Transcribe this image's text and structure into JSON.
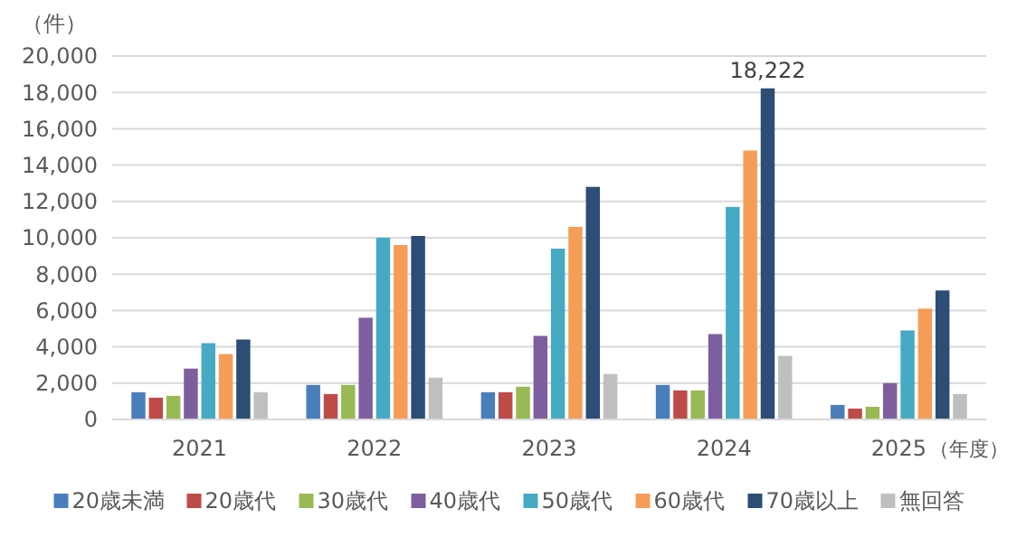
{
  "chart_data": {
    "type": "bar",
    "xlabel": "（年度）",
    "ylabel": "（件）",
    "categories": [
      "2021",
      "2022",
      "2023",
      "2024",
      "2025"
    ],
    "series": [
      {
        "name": "20歳未満",
        "color": "#4a7ebb",
        "values": [
          1500,
          1900,
          1500,
          1900,
          800
        ]
      },
      {
        "name": "20歳代",
        "color": "#be4b48",
        "values": [
          1200,
          1400,
          1500,
          1600,
          600
        ]
      },
      {
        "name": "30歳代",
        "color": "#98b954",
        "values": [
          1300,
          1900,
          1800,
          1600,
          700
        ]
      },
      {
        "name": "40歳代",
        "color": "#7d5fa0",
        "values": [
          2800,
          5600,
          4600,
          4700,
          2000
        ]
      },
      {
        "name": "50歳代",
        "color": "#46aac5",
        "values": [
          4200,
          10000,
          9400,
          11700,
          4900
        ]
      },
      {
        "name": "60歳代",
        "color": "#f59d56",
        "values": [
          3600,
          9600,
          10600,
          14800,
          6100
        ]
      },
      {
        "name": "70歳以上",
        "color": "#2c4d75",
        "values": [
          4400,
          10100,
          12800,
          18222,
          7100
        ],
        "value_labels": [
          null,
          null,
          null,
          "18,222",
          null
        ]
      },
      {
        "name": "無回答",
        "color": "#bfbfbf",
        "values": [
          1500,
          2300,
          2500,
          3500,
          1400
        ]
      }
    ],
    "ylim": [
      0,
      20000
    ],
    "yticks": [
      {
        "value": 0,
        "label": "0"
      },
      {
        "value": 2000,
        "label": "2,000"
      },
      {
        "value": 4000,
        "label": "4,000"
      },
      {
        "value": 6000,
        "label": "6,000"
      },
      {
        "value": 8000,
        "label": "8,000"
      },
      {
        "value": 10000,
        "label": "10,000"
      },
      {
        "value": 12000,
        "label": "12,000"
      },
      {
        "value": 14000,
        "label": "14,000"
      },
      {
        "value": 16000,
        "label": "16,000"
      },
      {
        "value": 18000,
        "label": "18,000"
      },
      {
        "value": 20000,
        "label": "20,000"
      }
    ],
    "grid": "y",
    "legend": "bottom"
  }
}
